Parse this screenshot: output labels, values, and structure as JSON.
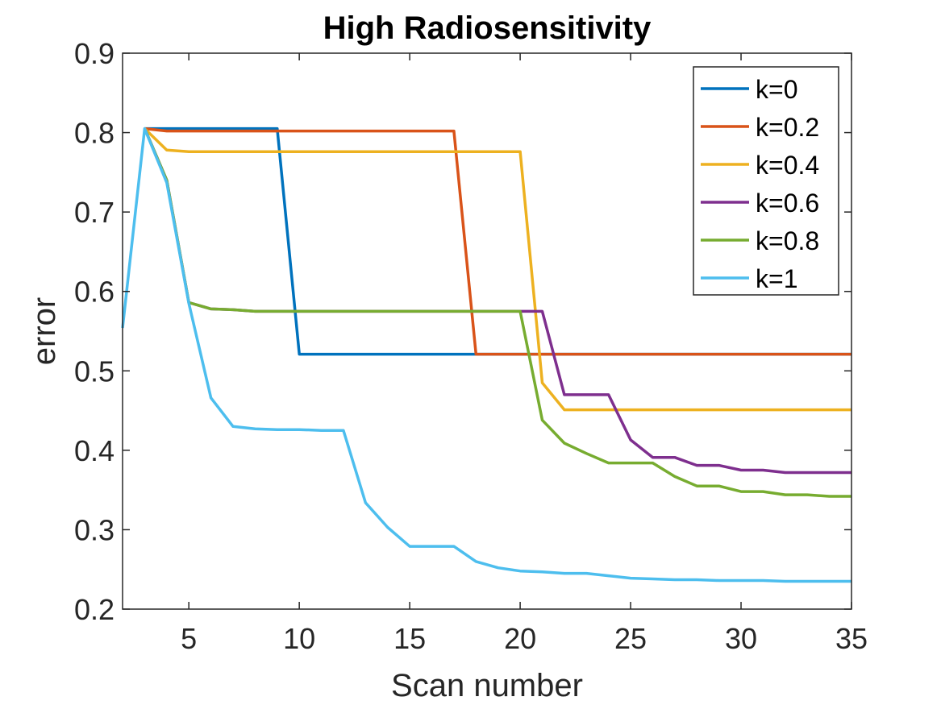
{
  "chart_data": {
    "type": "line",
    "title": "High Radiosensitivity",
    "xlabel": "Scan number",
    "ylabel": "error",
    "xlim": [
      2,
      35
    ],
    "ylim": [
      0.2,
      0.9
    ],
    "xticks": [
      5,
      10,
      15,
      20,
      25,
      30,
      35
    ],
    "yticks": [
      0.2,
      0.3,
      0.4,
      0.5,
      0.6,
      0.7,
      0.8,
      0.9
    ],
    "grid": false,
    "legend_position": "top-right",
    "series": [
      {
        "name": "k=0",
        "color": "#0072BD",
        "x": [
          3,
          9,
          10,
          35
        ],
        "y": [
          0.805,
          0.805,
          0.521,
          0.521
        ]
      },
      {
        "name": "k=0.2",
        "color": "#D95319",
        "x": [
          3,
          4,
          10,
          17,
          18,
          35
        ],
        "y": [
          0.805,
          0.802,
          0.802,
          0.802,
          0.521,
          0.521
        ]
      },
      {
        "name": "k=0.4",
        "color": "#EDB120",
        "x": [
          3,
          4,
          5,
          20,
          21,
          22,
          35
        ],
        "y": [
          0.805,
          0.778,
          0.776,
          0.776,
          0.485,
          0.451,
          0.451
        ]
      },
      {
        "name": "k=0.6",
        "color": "#7E2F8E",
        "x": [
          3,
          4,
          5,
          6,
          7,
          8,
          20,
          21,
          22,
          24,
          25,
          26,
          27,
          28,
          29,
          30,
          31,
          32,
          35
        ],
        "y": [
          0.805,
          0.74,
          0.586,
          0.578,
          0.577,
          0.575,
          0.575,
          0.575,
          0.47,
          0.47,
          0.413,
          0.391,
          0.391,
          0.381,
          0.381,
          0.375,
          0.375,
          0.372,
          0.372
        ]
      },
      {
        "name": "k=0.8",
        "color": "#77AC30",
        "x": [
          3,
          4,
          5,
          6,
          7,
          8,
          20,
          21,
          22,
          23,
          24,
          25,
          26,
          27,
          28,
          29,
          30,
          31,
          32,
          33,
          34,
          35
        ],
        "y": [
          0.805,
          0.74,
          0.586,
          0.578,
          0.577,
          0.575,
          0.575,
          0.438,
          0.409,
          0.396,
          0.384,
          0.384,
          0.384,
          0.367,
          0.355,
          0.355,
          0.348,
          0.348,
          0.344,
          0.344,
          0.342,
          0.342
        ]
      },
      {
        "name": "k=1",
        "color": "#4DBEEE",
        "x": [
          2,
          3,
          4,
          5,
          6,
          7,
          8,
          9,
          10,
          11,
          12,
          13,
          14,
          15,
          16,
          17,
          18,
          19,
          20,
          21,
          22,
          23,
          24,
          25,
          26,
          27,
          28,
          29,
          30,
          31,
          32,
          33,
          34,
          35
        ],
        "y": [
          0.554,
          0.805,
          0.737,
          0.585,
          0.466,
          0.43,
          0.427,
          0.426,
          0.426,
          0.425,
          0.425,
          0.334,
          0.303,
          0.279,
          0.279,
          0.279,
          0.26,
          0.252,
          0.248,
          0.247,
          0.245,
          0.245,
          0.242,
          0.239,
          0.238,
          0.237,
          0.237,
          0.236,
          0.236,
          0.236,
          0.235,
          0.235,
          0.235,
          0.235
        ]
      }
    ]
  }
}
